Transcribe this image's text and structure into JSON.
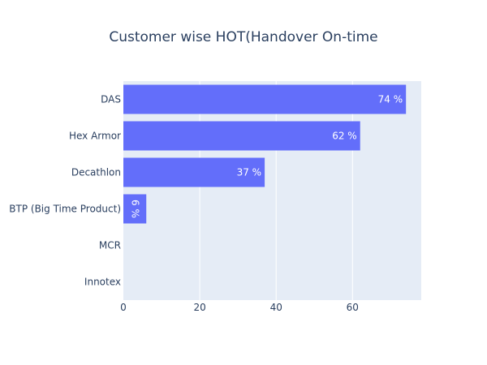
{
  "chart_data": {
    "type": "bar",
    "orientation": "horizontal",
    "title": "Customer wise HOT(Handover On-time",
    "xlabel": "",
    "ylabel": "",
    "categories": [
      "DAS",
      "Hex Armor",
      "Decathlon",
      "BTP (Big Time Product)",
      "MCR",
      "Innotex"
    ],
    "values": [
      74,
      62,
      37,
      6,
      0,
      0
    ],
    "data_labels": [
      "74 %",
      "62 %",
      "37 %",
      "6 %",
      "",
      ""
    ],
    "xlim": [
      0,
      78
    ],
    "xticks": [
      0,
      20,
      40,
      60
    ],
    "grid": true,
    "colors": {
      "bar": "#636efa",
      "plot_bg": "#e5ecf6",
      "grid": "#ffffff",
      "text": "#2a3f5f"
    }
  }
}
